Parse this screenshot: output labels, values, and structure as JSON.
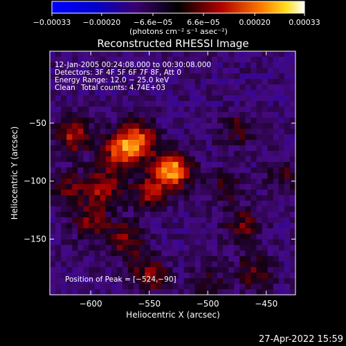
{
  "chart_data": {
    "type": "heatmap",
    "title": "Reconstructed RHESSI Image",
    "xlabel": "Heliocentric X (arcsec)",
    "ylabel": "Heliocentric Y (arcsec)",
    "xlim": [
      -635,
      -425
    ],
    "ylim": [
      -198,
      12
    ],
    "xticks": [
      -600,
      -550,
      -500,
      -450
    ],
    "xtick_labels": [
      "−600",
      "−550",
      "−500",
      "−450"
    ],
    "yticks": [
      -50,
      -100,
      -150
    ],
    "ytick_labels": [
      "−50",
      "−100",
      "−150"
    ],
    "colorbar": {
      "range": [
        -0.00033,
        0.00033
      ],
      "ticks": [
        -0.00033,
        -0.0002,
        -6.6e-05,
        6.6e-05,
        0.0002,
        0.00033
      ],
      "tick_labels": [
        "−0.00033",
        "−0.00020",
        "−6.6e−05",
        "6.6e−05",
        "0.00020",
        "0.00033"
      ],
      "unit_label": "(photons cm⁻² s⁻¹ asec⁻²)"
    },
    "annotations": [
      "12-Jan-2005 00:24:08.000 to 00:30:08.000",
      "Detectors: 3F 4F 5F 6F 7F 8F, Att 0",
      "Energy Range: 12.0 − 25.0 keV",
      "Clean",
      "Total counts: 4.74E+03"
    ],
    "peak_label": "Position of Peak = [−524,−90]",
    "peak": [
      -524,
      -90
    ],
    "sources": [
      {
        "x": -530,
        "y": -90,
        "value": 0.00033
      },
      {
        "x": -560,
        "y": -65,
        "value": 0.00026
      },
      {
        "x": -575,
        "y": -75,
        "value": 0.00022
      },
      {
        "x": -615,
        "y": -60,
        "value": 0.0002
      },
      {
        "x": -590,
        "y": -105,
        "value": 0.00018
      },
      {
        "x": -550,
        "y": -110,
        "value": 0.00017
      },
      {
        "x": -600,
        "y": -135,
        "value": 0.00015
      },
      {
        "x": -570,
        "y": -150,
        "value": 0.00016
      },
      {
        "x": -550,
        "y": -180,
        "value": 0.00016
      },
      {
        "x": -620,
        "y": -105,
        "value": 0.00012
      },
      {
        "x": -470,
        "y": -140,
        "value": 0.00013
      },
      {
        "x": -460,
        "y": -180,
        "value": 0.00012
      },
      {
        "x": -475,
        "y": -55,
        "value": 0.00011
      },
      {
        "x": -485,
        "y": -105,
        "value": 0.00011
      },
      {
        "x": -435,
        "y": -95,
        "value": 0.0001
      },
      {
        "x": -500,
        "y": -185,
        "value": 9e-05
      }
    ]
  },
  "timestamp": "27-Apr-2022 15:59"
}
